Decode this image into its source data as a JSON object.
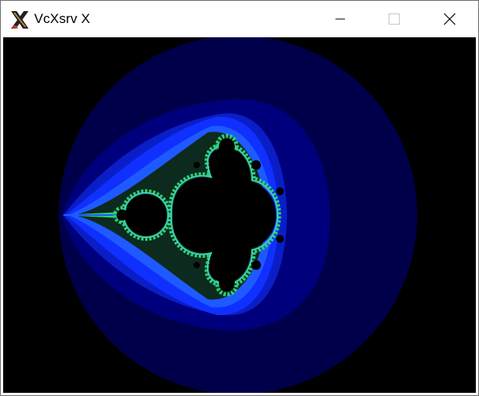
{
  "window": {
    "title": "VcXsrv X",
    "app_icon": "x-logo-icon",
    "controls": {
      "minimize_icon": "minimize-icon",
      "maximize_icon": "maximize-icon",
      "close_icon": "close-icon"
    }
  },
  "canvas": {
    "content": "mandelbrot-fractal",
    "background": "#000000",
    "palette": {
      "band_outer": "#00004a",
      "band_2": "#00007c",
      "band_3": "#0a1ec8",
      "band_4": "#0f30ff",
      "band_5": "#1e5aff",
      "band_6": "#0c2a1e",
      "edge_green": "#2bd06e",
      "edge_cyan": "#3ccfb8",
      "set_interior": "#000000"
    }
  }
}
